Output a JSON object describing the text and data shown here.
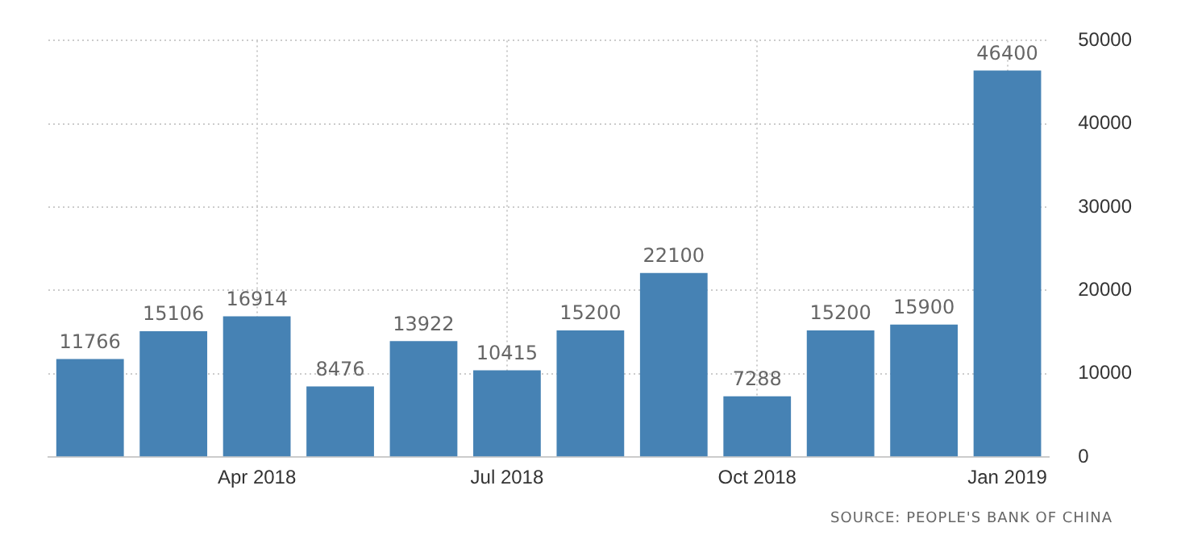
{
  "chart_data": {
    "type": "bar",
    "categories": [
      null,
      null,
      "Apr 2018",
      null,
      null,
      "Jul 2018",
      null,
      null,
      "Oct 2018",
      null,
      null,
      "Jan 2019"
    ],
    "values": [
      11766,
      15106,
      16914,
      8476,
      13922,
      10415,
      15200,
      22100,
      7288,
      15200,
      15900,
      46400
    ],
    "color": "#4682b4",
    "ylim": [
      0,
      50000
    ],
    "yticks": [
      0,
      10000,
      20000,
      30000,
      40000,
      50000
    ],
    "grid": true,
    "data_labels": true,
    "annotations": [
      "SOURCE: PEOPLE'S BANK OF CHINA"
    ]
  }
}
